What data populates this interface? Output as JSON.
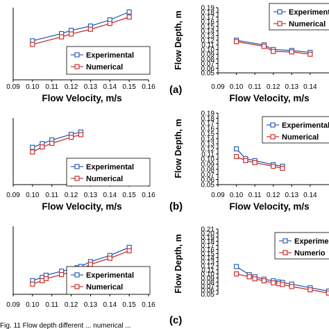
{
  "figure": {
    "caption": "Fig. 11 Flow depth different ... numerical ... "
  },
  "colors": {
    "experimental": "#2a5fb4",
    "numerical": "#c9302c",
    "axis": "#000000"
  },
  "chart_data": [
    {
      "type": "line",
      "panel_label": "",
      "xlabel": "Flow Velocity, m/s",
      "ylabel": "",
      "xlim": [
        0.09,
        0.16
      ],
      "x_ticks": [
        "0.09",
        "0.10",
        "0.11",
        "0.12",
        "0.13",
        "0.14",
        "0.15",
        "0.16"
      ],
      "ylim": [
        0.0,
        1.0
      ],
      "y_ticks": [],
      "legend": {
        "items": [
          "Experimental",
          "Numerical"
        ],
        "position": "bottom-right"
      },
      "series": [
        {
          "name": "Experimental",
          "marker": "square",
          "x": [
            0.1,
            0.115,
            0.12,
            0.13,
            0.14,
            0.15
          ],
          "y": [
            0.54,
            0.64,
            0.685,
            0.745,
            0.83,
            0.94
          ]
        },
        {
          "name": "Numerical",
          "marker": "square",
          "x": [
            0.1,
            0.115,
            0.12,
            0.13,
            0.14,
            0.15
          ],
          "y": [
            0.49,
            0.595,
            0.635,
            0.7,
            0.78,
            0.87
          ]
        }
      ]
    },
    {
      "type": "line",
      "panel_label": "(a)",
      "xlabel": "Flow Velocity, m/s",
      "ylabel": "Flow Depth, m",
      "xlim": [
        0.09,
        0.16
      ],
      "x_ticks": [
        "0.09",
        "0.10",
        "0.11",
        "0.12",
        "0.13",
        "0.14"
      ],
      "ylim": [
        0.05,
        0.19
      ],
      "y_ticks": [
        "0.05",
        "0.06",
        "0.07",
        "0.08",
        "0.09",
        "0.10",
        "0.11",
        "0.12",
        "0.13",
        "0.14",
        "0.15",
        "0.16",
        "0.17",
        "0.18",
        "0.19"
      ],
      "legend": {
        "items": [
          "Experimental",
          "Numerical"
        ],
        "position": "top-right"
      },
      "series": [
        {
          "name": "Experimental",
          "marker": "square",
          "x": [
            0.1,
            0.115,
            0.12,
            0.13,
            0.14
          ],
          "y": [
            0.12,
            0.11,
            0.1,
            0.098,
            0.094
          ]
        },
        {
          "name": "Numerical",
          "marker": "square",
          "x": [
            0.1,
            0.115,
            0.12,
            0.13,
            0.14
          ],
          "y": [
            0.117,
            0.107,
            0.096,
            0.095,
            0.09
          ]
        }
      ]
    },
    {
      "type": "line",
      "panel_label": "",
      "xlabel": "Flow Velocity, m/s",
      "ylabel": "",
      "xlim": [
        0.09,
        0.16
      ],
      "x_ticks": [
        "0.09",
        "0.10",
        "0.11",
        "0.12",
        "0.13",
        "0.14",
        "0.15",
        "0.16"
      ],
      "ylim": [
        0.0,
        1.0
      ],
      "y_ticks": [],
      "legend": {
        "items": [
          "Experimental",
          "Numerical"
        ],
        "position": "bottom-right"
      },
      "series": [
        {
          "name": "Experimental",
          "marker": "square",
          "x": [
            0.1,
            0.105,
            0.11,
            0.12,
            0.125
          ],
          "y": [
            0.56,
            0.615,
            0.67,
            0.755,
            0.79
          ]
        },
        {
          "name": "Numerical",
          "marker": "square",
          "x": [
            0.1,
            0.105,
            0.11,
            0.12,
            0.125
          ],
          "y": [
            0.49,
            0.565,
            0.62,
            0.71,
            0.75
          ]
        }
      ]
    },
    {
      "type": "line",
      "panel_label": "(b)",
      "xlabel": "Flow Velocity, m/s",
      "ylabel": "Flow Depth, m",
      "xlim": [
        0.09,
        0.16
      ],
      "x_ticks": [
        "0.09",
        "0.10",
        "0.11",
        "0.12",
        "0.13",
        "0.14"
      ],
      "ylim": [
        0.05,
        0.19
      ],
      "y_ticks": [
        "0.05",
        "0.06",
        "0.07",
        "0.08",
        "0.09",
        "0.10",
        "0.11",
        "0.12",
        "0.13",
        "0.14",
        "0.15",
        "0.16",
        "0.17",
        "0.18",
        "0.19"
      ],
      "legend": {
        "items": [
          "Experimental",
          "Numerical"
        ],
        "position": "top-right"
      },
      "series": [
        {
          "name": "Experimental",
          "marker": "square",
          "x": [
            0.1,
            0.105,
            0.11,
            0.12,
            0.125
          ],
          "y": [
            0.12,
            0.101,
            0.097,
            0.089,
            0.086
          ]
        },
        {
          "name": "Numerical",
          "marker": "square",
          "x": [
            0.1,
            0.105,
            0.11,
            0.12,
            0.125
          ],
          "y": [
            0.105,
            0.097,
            0.093,
            0.086,
            0.082
          ]
        }
      ]
    },
    {
      "type": "line",
      "panel_label": "",
      "xlabel": "Flow Velocity, m/s",
      "ylabel": "",
      "xlim": [
        0.09,
        0.16
      ],
      "x_ticks": [
        "0.09",
        "0.10",
        "0.11",
        "0.12",
        "0.13",
        "0.14",
        "0.15",
        "0.16"
      ],
      "ylim": [
        0.0,
        1.0
      ],
      "y_ticks": [],
      "legend": {
        "items": [
          "Experimental",
          "Numerical"
        ],
        "position": "bottom-right"
      },
      "series": [
        {
          "name": "Experimental",
          "marker": "square",
          "x": [
            0.1,
            0.105,
            0.107,
            0.115,
            0.12,
            0.123,
            0.125,
            0.13,
            0.14,
            0.15
          ],
          "y": [
            0.2,
            0.25,
            0.28,
            0.34,
            0.37,
            0.39,
            0.41,
            0.48,
            0.57,
            0.69
          ]
        },
        {
          "name": "Numerical",
          "marker": "square",
          "x": [
            0.1,
            0.105,
            0.107,
            0.115,
            0.12,
            0.123,
            0.125,
            0.13,
            0.14,
            0.15
          ],
          "y": [
            0.15,
            0.2,
            0.23,
            0.29,
            0.33,
            0.35,
            0.37,
            0.44,
            0.53,
            0.64
          ]
        }
      ]
    },
    {
      "type": "line",
      "panel_label": "(c)",
      "xlabel": "",
      "ylabel": "Flow Depth, m",
      "xlim": [
        0.09,
        0.16
      ],
      "x_ticks": [],
      "ylim": [
        0.05,
        0.21
      ],
      "y_ticks": [
        "0.05",
        "0.06",
        "0.07",
        "0.08",
        "0.09",
        "0.10",
        "0.11",
        "0.12",
        "0.13",
        "0.14",
        "0.15",
        "0.16",
        "0.17",
        "0.18",
        "0.19",
        "0.20",
        "0.21"
      ],
      "legend": {
        "items": [
          "Experime",
          "Numerio"
        ],
        "position": "top-right"
      },
      "series": [
        {
          "name": "Experimental",
          "marker": "square",
          "x": [
            0.1,
            0.107,
            0.11,
            0.115,
            0.12,
            0.123,
            0.125,
            0.13,
            0.14,
            0.15
          ],
          "y": [
            0.118,
            0.098,
            0.093,
            0.087,
            0.083,
            0.08,
            0.079,
            0.075,
            0.066,
            0.058
          ]
        },
        {
          "name": "Numerical",
          "marker": "square",
          "x": [
            0.1,
            0.107,
            0.11,
            0.115,
            0.12,
            0.123,
            0.125,
            0.13,
            0.14,
            0.15
          ],
          "y": [
            0.1,
            0.093,
            0.088,
            0.083,
            0.078,
            0.076,
            0.074,
            0.069,
            0.061,
            0.053
          ]
        }
      ]
    }
  ]
}
